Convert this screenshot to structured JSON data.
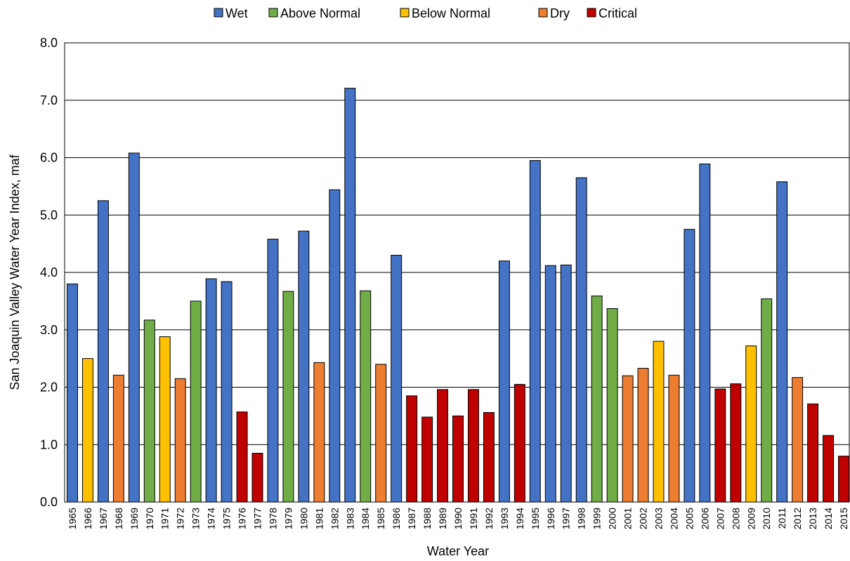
{
  "chart_data": {
    "type": "bar",
    "title": "",
    "xlabel": "Water Year",
    "ylabel": "San Joaquin Valley Water Year Index, maf",
    "ylim": [
      0,
      8
    ],
    "yticks": [
      "0.0",
      "1.0",
      "2.0",
      "3.0",
      "4.0",
      "5.0",
      "6.0",
      "7.0",
      "8.0"
    ],
    "grid": "horizontal",
    "legend_position": "top",
    "legend": [
      {
        "name": "Wet",
        "color": "#4472C4"
      },
      {
        "name": "Above Normal",
        "color": "#70AD47"
      },
      {
        "name": "Below Normal",
        "color": "#FFC000"
      },
      {
        "name": "Dry",
        "color": "#ED7D31"
      },
      {
        "name": "Critical",
        "color": "#C00000"
      }
    ],
    "categories": [
      "1965",
      "1966",
      "1967",
      "1968",
      "1969",
      "1970",
      "1971",
      "1972",
      "1973",
      "1974",
      "1975",
      "1976",
      "1977",
      "1978",
      "1979",
      "1980",
      "1981",
      "1982",
      "1983",
      "1984",
      "1985",
      "1986",
      "1987",
      "1988",
      "1989",
      "1990",
      "1991",
      "1992",
      "1993",
      "1994",
      "1995",
      "1996",
      "1997",
      "1998",
      "1999",
      "2000",
      "2001",
      "2002",
      "2003",
      "2004",
      "2005",
      "2006",
      "2007",
      "2008",
      "2009",
      "2010",
      "2011",
      "2012",
      "2013",
      "2014",
      "2015"
    ],
    "values": [
      3.8,
      2.5,
      5.25,
      2.21,
      6.08,
      3.17,
      2.88,
      2.15,
      3.5,
      3.89,
      3.84,
      1.57,
      0.85,
      4.58,
      3.67,
      4.72,
      2.43,
      5.44,
      7.21,
      3.68,
      2.4,
      4.3,
      1.85,
      1.48,
      1.96,
      1.5,
      1.96,
      1.56,
      4.2,
      2.05,
      5.95,
      4.12,
      4.13,
      5.65,
      3.59,
      3.37,
      2.2,
      2.33,
      2.8,
      2.21,
      4.75,
      5.89,
      1.97,
      2.06,
      2.72,
      3.54,
      5.58,
      2.17,
      1.71,
      1.16,
      0.8
    ],
    "year_types": [
      "Wet",
      "Below Normal",
      "Wet",
      "Dry",
      "Wet",
      "Above Normal",
      "Below Normal",
      "Dry",
      "Above Normal",
      "Wet",
      "Wet",
      "Critical",
      "Critical",
      "Wet",
      "Above Normal",
      "Wet",
      "Dry",
      "Wet",
      "Wet",
      "Above Normal",
      "Dry",
      "Wet",
      "Critical",
      "Critical",
      "Critical",
      "Critical",
      "Critical",
      "Critical",
      "Wet",
      "Critical",
      "Wet",
      "Wet",
      "Wet",
      "Wet",
      "Above Normal",
      "Above Normal",
      "Dry",
      "Dry",
      "Below Normal",
      "Dry",
      "Wet",
      "Wet",
      "Critical",
      "Critical",
      "Below Normal",
      "Above Normal",
      "Wet",
      "Dry",
      "Critical",
      "Critical",
      "Critical"
    ]
  }
}
